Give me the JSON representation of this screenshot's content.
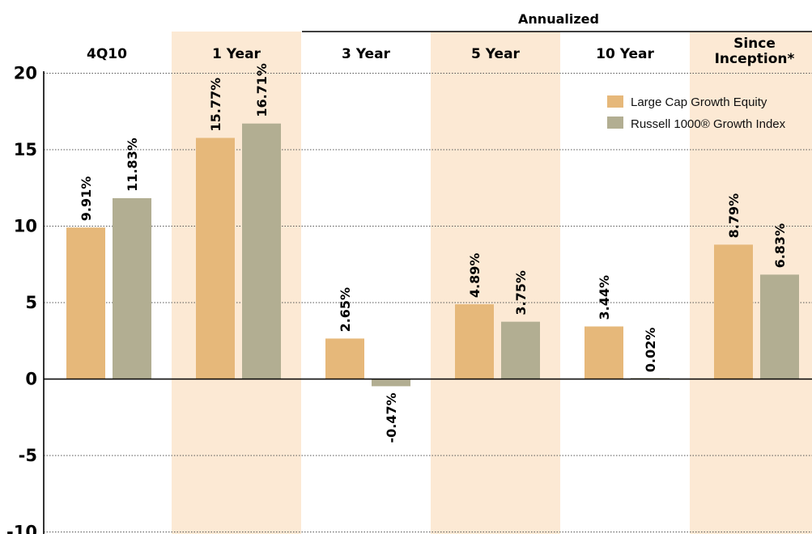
{
  "chart_data": {
    "type": "bar",
    "group_header": "Annualized",
    "categories": [
      "4Q10",
      "1 Year",
      "3 Year",
      "5 Year",
      "10 Year",
      "Since Inception*"
    ],
    "series": [
      {
        "name": "Large Cap Growth Equity",
        "values": [
          9.91,
          15.77,
          2.65,
          4.89,
          3.44,
          8.79
        ],
        "labels": [
          "9.91%",
          "15.77%",
          "2.65%",
          "4.89%",
          "3.44%",
          "8.79%"
        ]
      },
      {
        "name": "Russell 1000® Growth Index",
        "values": [
          11.83,
          16.71,
          -0.47,
          3.75,
          0.02,
          6.83
        ],
        "labels": [
          "11.83%",
          "16.71%",
          "-0.47%",
          "3.75%",
          "0.02%",
          "6.83%"
        ]
      }
    ],
    "yticks": [
      "20",
      "15",
      "10",
      "5",
      "0",
      "-5",
      "-10"
    ],
    "ylim": [
      -10,
      20
    ],
    "grid": true,
    "legend_position": "top-right",
    "colors": {
      "series": [
        "#E6B87A",
        "#B2AE92"
      ],
      "band": "#FCE9D4"
    }
  }
}
